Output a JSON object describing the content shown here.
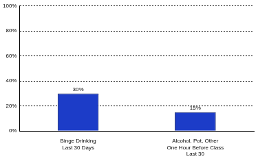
{
  "chart_data": {
    "type": "bar",
    "categories": [
      [
        "Binge Drinking",
        "Last 30 Days"
      ],
      [
        "Alcohol, Pot, Other",
        "One Hour Before Class",
        "Last 30"
      ]
    ],
    "values": [
      30,
      15
    ],
    "value_labels": [
      "30%",
      "15%"
    ],
    "data_labels": true,
    "color": "#1c3cc8",
    "ylim": [
      0,
      100
    ],
    "yticks": [
      {
        "value": 0,
        "label": "0%"
      },
      {
        "value": 20,
        "label": "20%"
      },
      {
        "value": 40,
        "label": "40%"
      },
      {
        "value": 60,
        "label": "60%"
      },
      {
        "value": 80,
        "label": "80%"
      },
      {
        "value": 100,
        "label": "100%"
      }
    ],
    "grid": true
  }
}
